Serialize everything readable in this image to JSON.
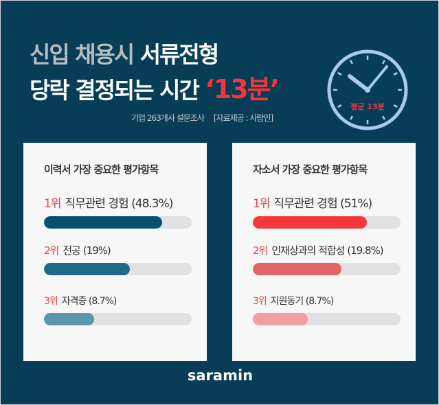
{
  "title": {
    "line1_grey": "신입 채용시",
    "line1_white": "서류전형",
    "line2_white": "당락 결정되는 시간",
    "line2_red": "‘13분’"
  },
  "subtitle": {
    "survey": "기업 263개사 설문조사",
    "source": "[자료제공 : 사람인]"
  },
  "clock": {
    "label": "평균 13분",
    "icon": "clock-icon"
  },
  "colors": {
    "background": "#083d58",
    "accent_red": "#f0383c",
    "clock": "#a9c9f2"
  },
  "panels": [
    {
      "title": "이력서 가장 중요한 평가항목",
      "items": [
        {
          "rank": "1위",
          "label": "직무관련 경험 (48.3%)",
          "value": 48.3,
          "fill": 0.8,
          "color": "#07506f"
        },
        {
          "rank": "2위",
          "label": "전공 (19%)",
          "value": 19,
          "fill": 0.58,
          "color": "#206a8a"
        },
        {
          "rank": "3위",
          "label": "자격증 (8.7%)",
          "value": 8.7,
          "fill": 0.34,
          "color": "#5a95ad"
        }
      ]
    },
    {
      "title": "자소서 가장 중요한 평가항목",
      "items": [
        {
          "rank": "1위",
          "label": "직무관련 경험 (51%)",
          "value": 51,
          "fill": 0.77,
          "color": "#f5383c"
        },
        {
          "rank": "2위",
          "label": "인재상과의 적합성 (19.8%)",
          "value": 19.8,
          "fill": 0.6,
          "color": "#e26568"
        },
        {
          "rank": "3위",
          "label": "지원동기 (8.7%)",
          "value": 8.7,
          "fill": 0.37,
          "color": "#eea0a2"
        }
      ]
    }
  ],
  "logo": "saramin"
}
